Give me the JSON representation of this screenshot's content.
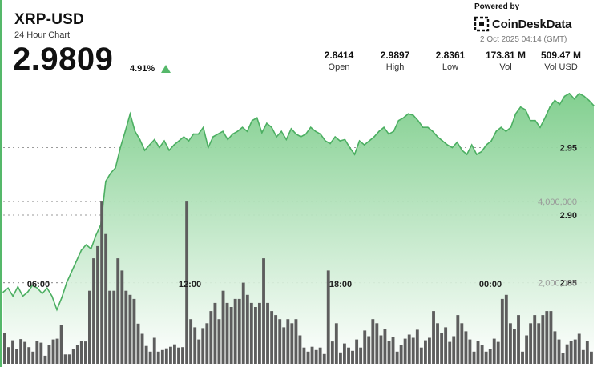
{
  "header": {
    "ticker": "XRP-USD",
    "period": "24 Hour Chart",
    "price": "2.9809",
    "change": "4.91%",
    "change_direction_icon": "triangle-up-icon",
    "powered_by": "Powered by",
    "brand": "CoinDeskData",
    "brand_icon": "coindesk-logo-icon",
    "timestamp": "2 Oct 2025 04:14 (GMT)"
  },
  "stats": [
    {
      "value": "2.8414",
      "label": "Open"
    },
    {
      "value": "2.9897",
      "label": "High"
    },
    {
      "value": "2.8361",
      "label": "Low"
    },
    {
      "value": "173.81 M",
      "label": "Vol"
    },
    {
      "value": "509.47 M",
      "label": "Vol USD"
    }
  ],
  "colors": {
    "accent": "#55b86a",
    "line": "#4caf62",
    "area_top": "#7ccd8a",
    "volume_bar": "#5d5d5d"
  },
  "chart_data": [
    {
      "type": "area",
      "series": [
        {
          "values": [
            2.843,
            2.846,
            2.84,
            2.847,
            2.84,
            2.843,
            2.848,
            2.846,
            2.842,
            2.846,
            2.84,
            2.83,
            2.839,
            2.85,
            2.858,
            2.866,
            2.874,
            2.878,
            2.875,
            2.885,
            2.893,
            2.925,
            2.931,
            2.935,
            2.95,
            2.962,
            2.975,
            2.962,
            2.956,
            2.948,
            2.952,
            2.956,
            2.95,
            2.955,
            2.948,
            2.952,
            2.955,
            2.958,
            2.955,
            2.96,
            2.96,
            2.965,
            2.95,
            2.958,
            2.96,
            2.962,
            2.956,
            2.96,
            2.962,
            2.965,
            2.962,
            2.97,
            2.972,
            2.961,
            2.968,
            2.965,
            2.958,
            2.962,
            2.956,
            2.964,
            2.96,
            2.958,
            2.96,
            2.965,
            2.962,
            2.96,
            2.955,
            2.953,
            2.958,
            2.955,
            2.956,
            2.95,
            2.945,
            2.955,
            2.952,
            2.955,
            2.958,
            2.962,
            2.965,
            2.96,
            2.962,
            2.97,
            2.972,
            2.975,
            2.974,
            2.97,
            2.965,
            2.965,
            2.962,
            2.958,
            2.955,
            2.952,
            2.95,
            2.954,
            2.948,
            2.945,
            2.952,
            2.945,
            2.947,
            2.952,
            2.955,
            2.962,
            2.965,
            2.962,
            2.965,
            2.975,
            2.98,
            2.978,
            2.97,
            2.97,
            2.965,
            2.972,
            2.98,
            2.985,
            2.982,
            2.988,
            2.99,
            2.986,
            2.99,
            2.988,
            2.985,
            2.981
          ]
        }
      ],
      "x_labels": [
        "06:00",
        "12:00",
        "18:00",
        "00:00"
      ],
      "y_ticks": [
        2.85,
        2.9,
        2.95
      ],
      "y_tick_labels": [
        "2.85",
        "2.90",
        "2.95"
      ],
      "ylim": [
        2.79,
        3.0
      ],
      "grid": true,
      "xlabel": "",
      "ylabel": ""
    },
    {
      "type": "bar",
      "series": [
        {
          "values": [
            760000,
            410000,
            580000,
            360000,
            610000,
            540000,
            410000,
            300000,
            560000,
            520000,
            200000,
            470000,
            600000,
            620000,
            960000,
            230000,
            230000,
            360000,
            470000,
            560000,
            550000,
            1800000,
            2600000,
            2900000,
            4000000,
            3200000,
            1800000,
            1800000,
            2600000,
            2300000,
            1800000,
            1700000,
            1600000,
            990000,
            740000,
            440000,
            300000,
            640000,
            300000,
            340000,
            380000,
            420000,
            480000,
            400000,
            410000,
            4000000,
            1100000,
            900000,
            600000,
            880000,
            1000000,
            1300000,
            1500000,
            1100000,
            1800000,
            1500000,
            1400000,
            1600000,
            1600000,
            2000000,
            1700000,
            1500000,
            1400000,
            1500000,
            2600000,
            1500000,
            1300000,
            1200000,
            1100000,
            900000,
            1100000,
            1000000,
            1100000,
            700000,
            400000,
            300000,
            420000,
            340000,
            400000,
            240000,
            2300000,
            550000,
            1000000,
            280000,
            500000,
            400000,
            320000,
            600000,
            400000,
            820000,
            680000,
            1100000,
            1000000,
            700000,
            860000,
            560000,
            660000,
            300000,
            460000,
            620000,
            720000,
            640000,
            840000,
            400000,
            580000,
            640000,
            1300000,
            1000000,
            760000,
            900000,
            540000,
            680000,
            1200000,
            1000000,
            800000,
            600000,
            300000,
            560000,
            460000,
            300000,
            360000,
            620000,
            540000,
            1600000,
            1700000,
            1000000,
            860000,
            1200000,
            300000,
            700000,
            1000000,
            1200000,
            1000000,
            1200000,
            1300000,
            1300000,
            800000,
            600000,
            260000,
            480000,
            560000,
            600000,
            740000,
            340000,
            560000,
            300000
          ]
        }
      ],
      "y_ticks": [
        2000000,
        4000000
      ],
      "y_tick_labels": [
        "2,000,000",
        "4,000,000"
      ],
      "ylim": [
        0,
        7000000
      ],
      "xlabel": "",
      "ylabel": ""
    }
  ]
}
